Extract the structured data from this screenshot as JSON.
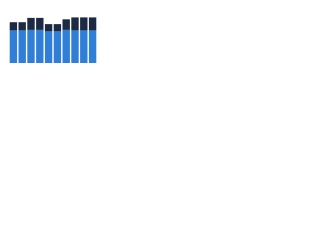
{
  "chart_data": {
    "type": "stacked_bar",
    "categories": [
      null,
      null,
      null,
      null,
      null,
      null,
      null,
      null,
      null,
      null
    ],
    "series": [
      {
        "color": "#2f7ed8",
        "values": [
          68,
          68,
          69,
          69,
          66,
          66,
          69,
          68,
          68,
          68
        ]
      },
      {
        "color": "#1c2a43",
        "values": [
          17,
          17,
          25,
          25,
          15,
          15,
          22,
          27,
          27,
          27
        ]
      }
    ],
    "ylim": [
      0,
      100
    ]
  }
}
